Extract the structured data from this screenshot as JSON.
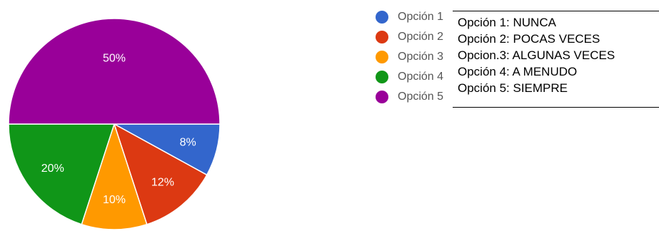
{
  "chart_data": {
    "type": "pie",
    "categories": [
      "Opción 1",
      "Opción 2",
      "Opción 3",
      "Opción 4",
      "Opción 5"
    ],
    "values": [
      8,
      12,
      10,
      20,
      50
    ],
    "value_labels": [
      "8%",
      "12%",
      "10%",
      "20%",
      "50%"
    ],
    "colors": [
      "#3366cc",
      "#dc3912",
      "#ff9900",
      "#109618",
      "#990099"
    ],
    "title": "",
    "legend_position": "right",
    "legend": [
      "Opción 1",
      "Opción 2",
      "Opción 3",
      "Opción 4",
      "Opción 5"
    ]
  },
  "note_box": {
    "lines": [
      "Opción 1: NUNCA",
      "Opción 2: POCAS VECES",
      "Opcion.3: ALGUNAS VECES",
      "Opción 4: A MENUDO",
      "Opción 5: SIEMPRE"
    ]
  }
}
